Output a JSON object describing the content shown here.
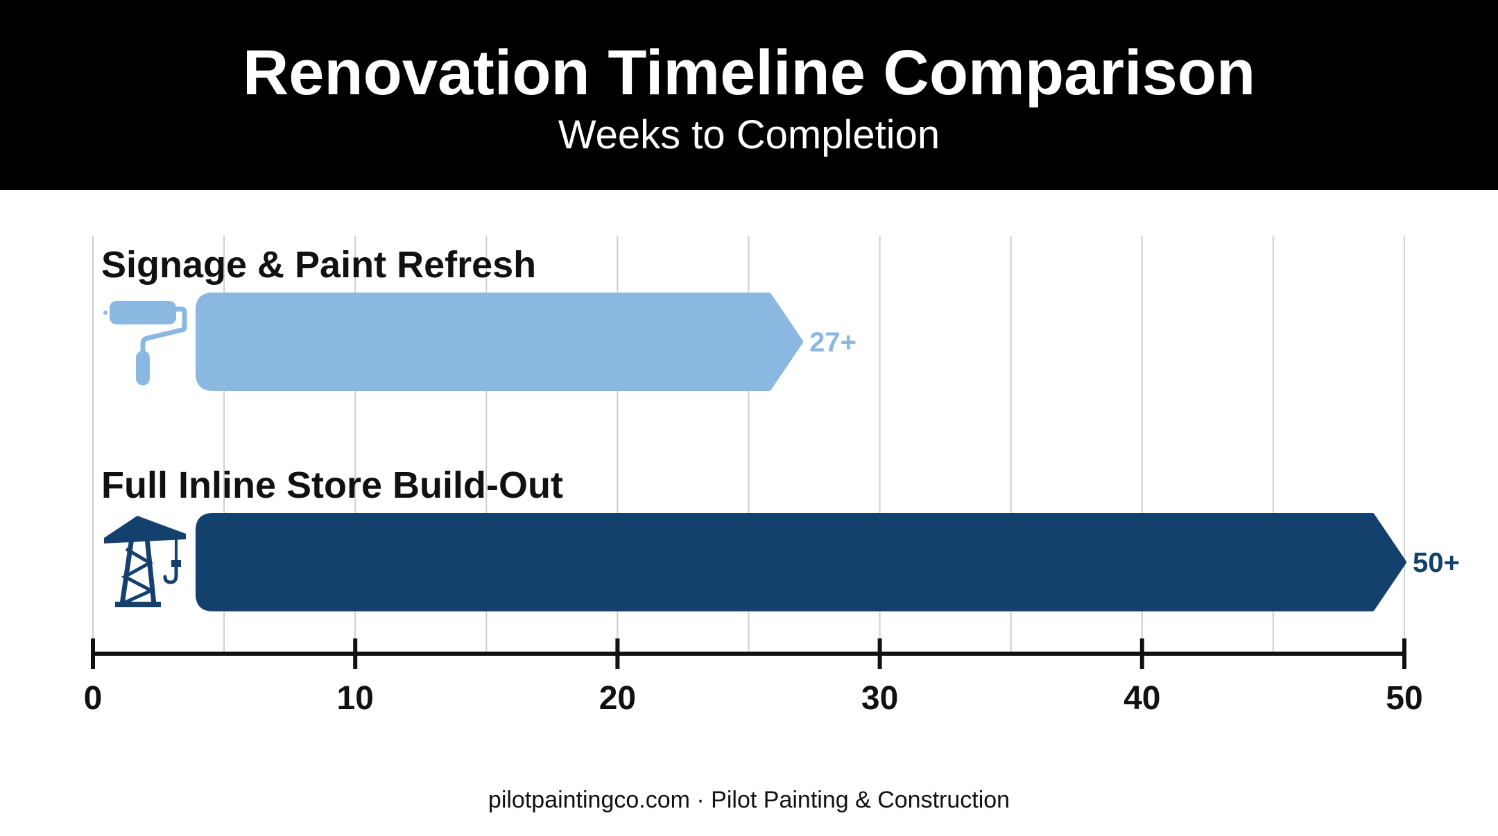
{
  "header": {
    "title": "Renovation Timeline Comparison",
    "subtitle": "Weeks to Completion"
  },
  "chart_data": {
    "type": "bar",
    "orientation": "horizontal",
    "title": "Renovation Timeline Comparison",
    "subtitle": "Weeks to Completion",
    "categories": [
      "Signage & Paint Refresh",
      "Full Inline Store Build-Out"
    ],
    "values": [
      27,
      50
    ],
    "value_labels": [
      "27+",
      "50+"
    ],
    "bar_colors": [
      "#8ab8e0",
      "#14406d"
    ],
    "icons": [
      "paint-roller-icon",
      "crane-icon"
    ],
    "xlim": [
      0,
      50
    ],
    "xticks": [
      0,
      10,
      20,
      30,
      40,
      50
    ],
    "grid": true,
    "xlabel": "",
    "ylabel": ""
  },
  "footer": {
    "text": "pilotpaintingco.com · Pilot Painting & Construction"
  }
}
